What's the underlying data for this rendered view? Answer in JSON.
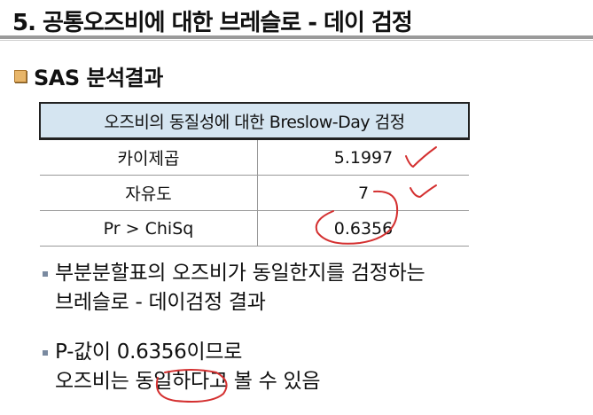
{
  "slide": {
    "title": "5. 공통오즈비에 대한 브레슬로 - 데이 검정"
  },
  "section": {
    "heading": "SAS 분석결과"
  },
  "table": {
    "header": "오즈비의 동질성에 대한 Breslow-Day 검정",
    "rows": [
      {
        "label": "카이제곱",
        "value": "5.1997"
      },
      {
        "label": "자유도",
        "value": "7"
      },
      {
        "label": "Pr > ChiSq",
        "value": "0.6356"
      }
    ]
  },
  "bullets": [
    {
      "line1": "부분분할표의 오즈비가 동일한지를 검정하는",
      "line2": "브레슬로 - 데이검정 결과"
    },
    {
      "line1": "P-값이 0.6356이므로",
      "line2": "오즈비는 동일하다고 볼 수 있음"
    }
  ],
  "colors": {
    "header_fill": "#d5e5f1",
    "annotation": "#d43030",
    "bullet_square": "#e8b66a"
  }
}
